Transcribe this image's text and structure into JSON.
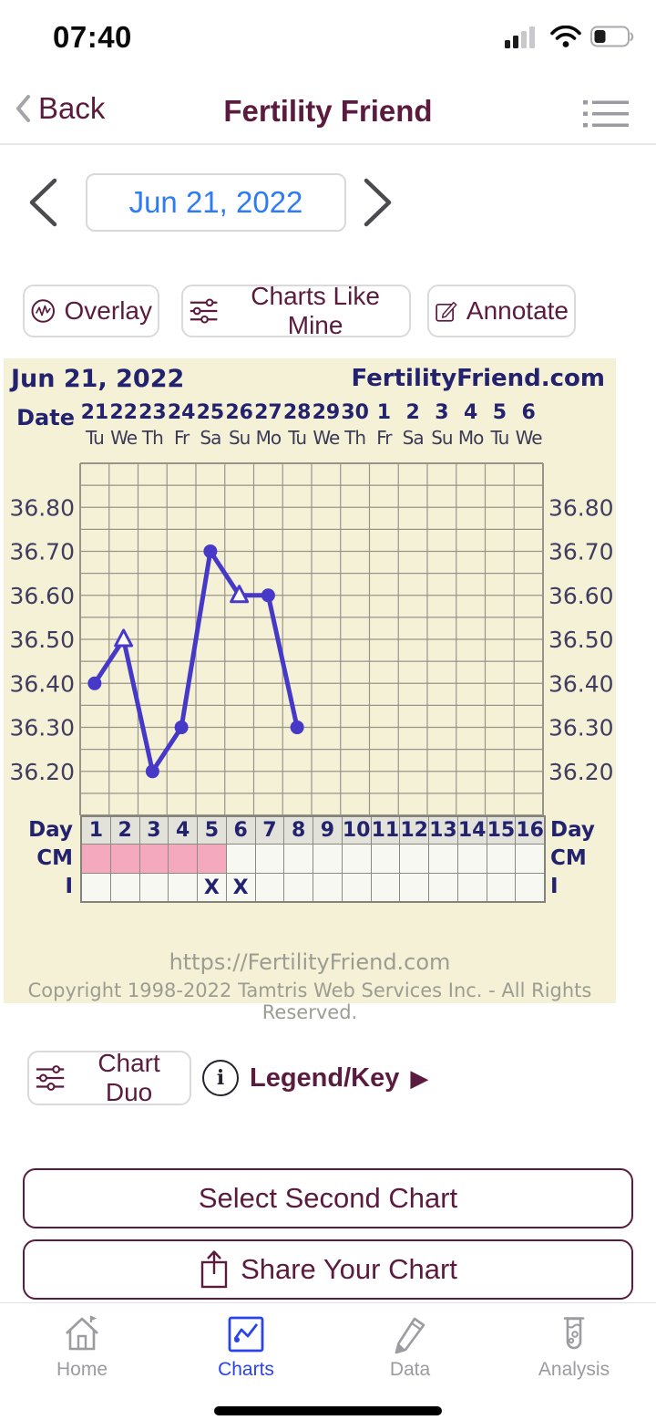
{
  "colors": {
    "maroon": "#5b1b3e",
    "date_blue": "#2e7bf6",
    "navy": "#23226e",
    "line": "#4639c8",
    "chart_bg": "#f5f1d6",
    "grid": "#97948c",
    "pink": "#f5a9bf",
    "day_cell": "#e2e2da",
    "cell": "#f8f8f2",
    "gray_text": "#9c9c92",
    "tab_active": "#2b44e8",
    "tab_inactive": "#9b9ba0"
  },
  "status_bar": {
    "time": "07:40"
  },
  "nav_bar": {
    "back": "Back",
    "title": "Fertility Friend"
  },
  "date_nav": {
    "selected_date": "Jun 21, 2022"
  },
  "toolbar": {
    "overlay": "Overlay",
    "charts_like_mine": "Charts Like Mine",
    "annotate": "Annotate"
  },
  "chart_data": {
    "type": "line",
    "title": "Jun 21, 2022",
    "watermark": "FertilityFriend.com",
    "x_axis": {
      "label": "Date",
      "dates": [
        "21",
        "22",
        "23",
        "24",
        "25",
        "26",
        "27",
        "28",
        "29",
        "30",
        "1",
        "2",
        "3",
        "4",
        "5",
        "6"
      ],
      "weekdays": [
        "Tu",
        "We",
        "Th",
        "Fr",
        "Sa",
        "Su",
        "Mo",
        "Tu",
        "We",
        "Th",
        "Fr",
        "Sa",
        "Su",
        "Mo",
        "Tu",
        "We"
      ]
    },
    "y_axis": {
      "ticks": [
        36.8,
        36.7,
        36.6,
        36.5,
        36.4,
        36.3,
        36.2
      ],
      "ymin": 36.1,
      "ymax": 36.9,
      "minor_step": 0.05,
      "grid": true
    },
    "series": [
      {
        "name": "temperature",
        "points": [
          {
            "day": 1,
            "temp": 36.4,
            "marker": "circle"
          },
          {
            "day": 2,
            "temp": 36.5,
            "marker": "triangle"
          },
          {
            "day": 3,
            "temp": 36.2,
            "marker": "circle"
          },
          {
            "day": 4,
            "temp": 36.3,
            "marker": "circle"
          },
          {
            "day": 5,
            "temp": 36.7,
            "marker": "circle"
          },
          {
            "day": 6,
            "temp": 36.6,
            "marker": "triangle"
          },
          {
            "day": 7,
            "temp": 36.6,
            "marker": "circle"
          },
          {
            "day": 8,
            "temp": 36.3,
            "marker": "circle"
          }
        ]
      }
    ],
    "rows": {
      "day": {
        "label": "Day",
        "values": [
          1,
          2,
          3,
          4,
          5,
          6,
          7,
          8,
          9,
          10,
          11,
          12,
          13,
          14,
          15,
          16
        ]
      },
      "cm": {
        "label": "CM",
        "menses_days": [
          1,
          2,
          3,
          4,
          5
        ]
      },
      "intercourse": {
        "label": "I",
        "mark": "X",
        "marked_days": [
          5,
          6
        ]
      }
    },
    "footer": {
      "url": "https://FertilityFriend.com",
      "copyright": "Copyright 1998-2022 Tamtris Web Services Inc. - All Rights Reserved."
    }
  },
  "secondary_bar": {
    "chart_duo": "Chart Duo",
    "legend_key": "Legend/Key",
    "legend_arrow": "▶",
    "info_glyph": "i"
  },
  "action_buttons": {
    "select_second": "Select Second Chart",
    "share": "Share Your Chart"
  },
  "tab_bar": {
    "items": [
      {
        "label": "Home"
      },
      {
        "label": "Charts"
      },
      {
        "label": "Data"
      },
      {
        "label": "Analysis"
      }
    ],
    "active": "Charts"
  }
}
